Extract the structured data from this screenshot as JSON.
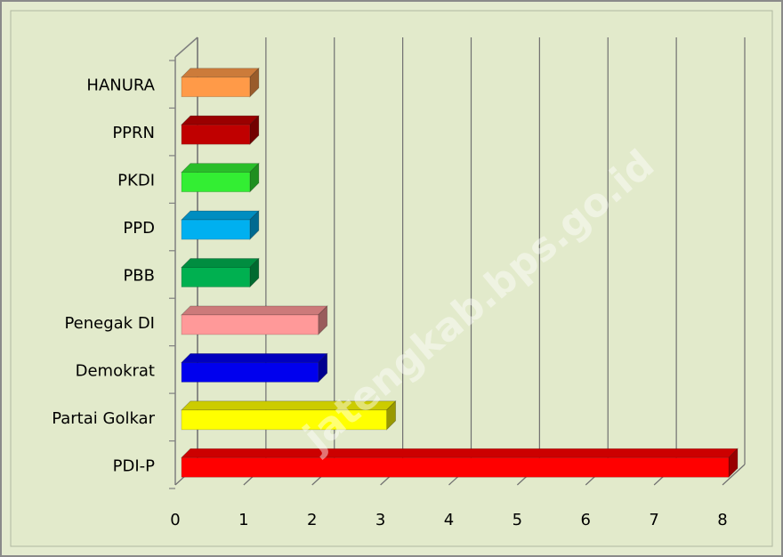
{
  "chart_data": {
    "type": "bar",
    "orientation": "horizontal",
    "categories": [
      "HANURA",
      "PPRN",
      "PKDI",
      "PPD",
      "PBB",
      "Penegak DI",
      "Demokrat",
      "Partai Golkar",
      "PDI-P"
    ],
    "values": [
      1,
      1,
      1,
      1,
      1,
      2,
      2,
      3,
      8
    ],
    "colors": [
      "#ff9a48",
      "#c00000",
      "#33ee33",
      "#00b0f0",
      "#00b050",
      "#ff9999",
      "#0000ee",
      "#ffff00",
      "#ff0000"
    ],
    "xlim": [
      0,
      8
    ],
    "xticks": [
      0,
      1,
      2,
      3,
      4,
      5,
      6,
      7,
      8
    ],
    "grid": true,
    "watermark": "jatengkab.bps.go.id"
  }
}
